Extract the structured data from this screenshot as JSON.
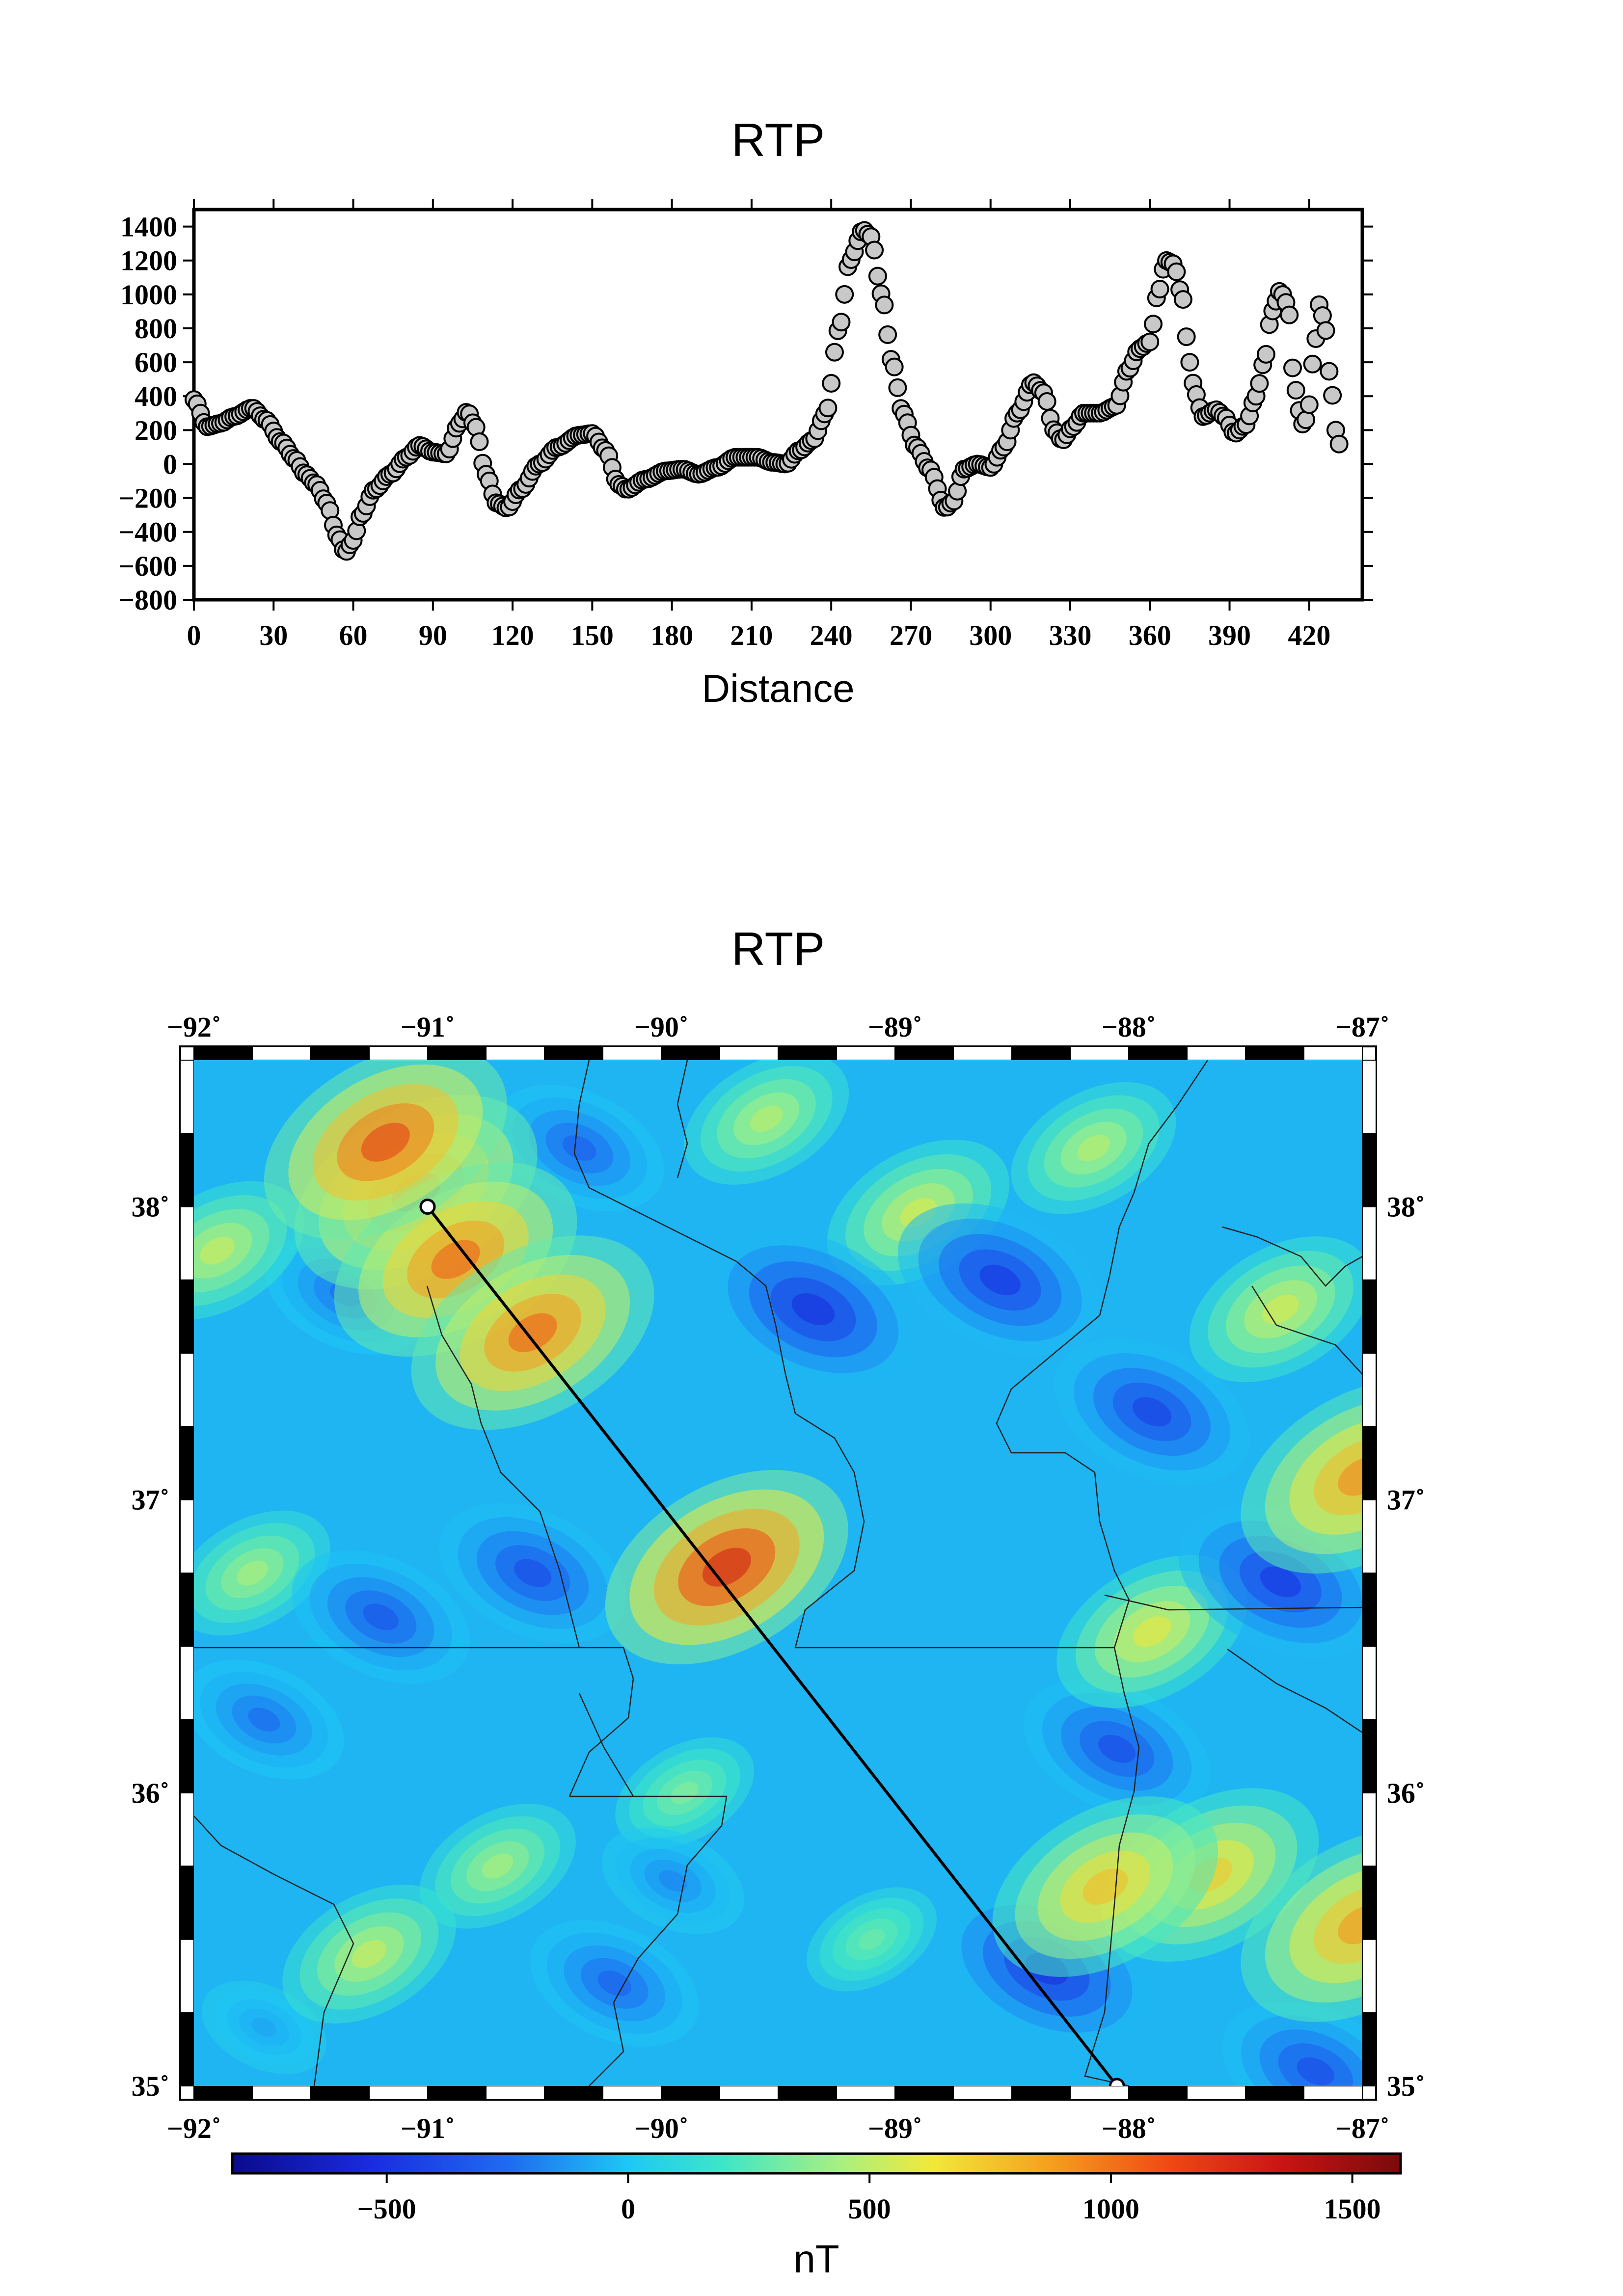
{
  "chart_data": [
    {
      "type": "scatter",
      "title": "RTP",
      "xlabel": "Distance",
      "ylabel": "",
      "xlim": [
        0,
        440
      ],
      "ylim": [
        -800,
        1500
      ],
      "x_ticks": [
        0,
        30,
        60,
        90,
        120,
        150,
        180,
        210,
        240,
        270,
        300,
        330,
        360,
        390,
        420
      ],
      "x_tick_labels": [
        "0",
        "30",
        "60",
        "90",
        "120",
        "150",
        "180",
        "210",
        "240",
        "270",
        "300",
        "330",
        "360",
        "390",
        "420"
      ],
      "y_ticks": [
        -800,
        -600,
        -400,
        -200,
        0,
        200,
        400,
        600,
        800,
        1000,
        1200,
        1400
      ],
      "y_tick_labels": [
        "−800",
        "−600",
        "−400",
        "−200",
        "0",
        "200",
        "400",
        "600",
        "800",
        "1000",
        "1200",
        "1400"
      ],
      "marker": {
        "shape": "circle",
        "fill": "#c8c8c8",
        "stroke": "#000000"
      },
      "profile_knots": [
        [
          0,
          380
        ],
        [
          5,
          220
        ],
        [
          10,
          240
        ],
        [
          15,
          280
        ],
        [
          22,
          330
        ],
        [
          27,
          260
        ],
        [
          33,
          130
        ],
        [
          38,
          30
        ],
        [
          42,
          -60
        ],
        [
          46,
          -120
        ],
        [
          50,
          -230
        ],
        [
          54,
          -420
        ],
        [
          57,
          -520
        ],
        [
          60,
          -450
        ],
        [
          63,
          -300
        ],
        [
          68,
          -150
        ],
        [
          74,
          -60
        ],
        [
          80,
          40
        ],
        [
          85,
          110
        ],
        [
          90,
          70
        ],
        [
          95,
          60
        ],
        [
          100,
          240
        ],
        [
          103,
          310
        ],
        [
          106,
          220
        ],
        [
          110,
          -60
        ],
        [
          114,
          -230
        ],
        [
          118,
          -260
        ],
        [
          123,
          -150
        ],
        [
          130,
          0
        ],
        [
          137,
          100
        ],
        [
          145,
          170
        ],
        [
          150,
          180
        ],
        [
          155,
          80
        ],
        [
          160,
          -120
        ],
        [
          163,
          -150
        ],
        [
          170,
          -90
        ],
        [
          178,
          -40
        ],
        [
          184,
          -30
        ],
        [
          190,
          -60
        ],
        [
          197,
          -20
        ],
        [
          204,
          40
        ],
        [
          212,
          40
        ],
        [
          218,
          10
        ],
        [
          223,
          0
        ],
        [
          228,
          80
        ],
        [
          233,
          140
        ],
        [
          238,
          300
        ],
        [
          243,
          800
        ],
        [
          247,
          1200
        ],
        [
          252,
          1380
        ],
        [
          255,
          1340
        ],
        [
          259,
          1000
        ],
        [
          263,
          600
        ],
        [
          267,
          300
        ],
        [
          272,
          100
        ],
        [
          277,
          -30
        ],
        [
          283,
          -260
        ],
        [
          286,
          -220
        ],
        [
          290,
          -30
        ],
        [
          295,
          0
        ],
        [
          300,
          -20
        ],
        [
          305,
          100
        ],
        [
          310,
          300
        ],
        [
          316,
          480
        ],
        [
          320,
          420
        ],
        [
          324,
          200
        ],
        [
          327,
          140
        ],
        [
          331,
          220
        ],
        [
          335,
          300
        ],
        [
          341,
          300
        ],
        [
          347,
          340
        ],
        [
          352,
          560
        ],
        [
          356,
          680
        ],
        [
          360,
          720
        ],
        [
          363,
          1000
        ],
        [
          366,
          1200
        ],
        [
          369,
          1180
        ],
        [
          372,
          1000
        ],
        [
          375,
          600
        ],
        [
          377,
          420
        ],
        [
          380,
          280
        ],
        [
          385,
          320
        ],
        [
          388,
          280
        ],
        [
          392,
          180
        ],
        [
          396,
          230
        ],
        [
          400,
          400
        ],
        [
          403,
          600
        ],
        [
          406,
          900
        ],
        [
          409,
          1020
        ],
        [
          412,
          940
        ],
        [
          414,
          550
        ],
        [
          416,
          320
        ],
        [
          418,
          220
        ],
        [
          420,
          350
        ],
        [
          422,
          700
        ],
        [
          424,
          950
        ],
        [
          426,
          800
        ],
        [
          428,
          500
        ],
        [
          430,
          200
        ],
        [
          432,
          80
        ]
      ]
    },
    {
      "type": "heatmap",
      "title": "RTP",
      "x_ticks": [
        -92,
        -91,
        -90,
        -89,
        -88,
        -87
      ],
      "x_tick_labels": [
        "−92˚",
        "−91˚",
        "−90˚",
        "−89˚",
        "−88˚",
        "−87˚"
      ],
      "y_ticks": [
        35,
        36,
        37,
        38
      ],
      "y_tick_labels": [
        "35˚",
        "36˚",
        "37˚",
        "38˚"
      ],
      "xlim": [
        -92,
        -87
      ],
      "ylim": [
        35,
        38.5
      ],
      "colorbar": {
        "label": "nT",
        "range": [
          -820,
          1600
        ],
        "ticks": [
          -500,
          0,
          500,
          1000,
          1500
        ],
        "tick_labels": [
          "−500",
          "0",
          "500",
          "1000",
          "1500"
        ]
      },
      "profile_line": {
        "start": [
          -91.0,
          38.0
        ],
        "end": [
          -88.05,
          35.0
        ]
      },
      "anomalies": [
        {
          "lon": -89.72,
          "lat": 36.77,
          "value": 1500
        },
        {
          "lon": -91.18,
          "lat": 38.22,
          "value": 1300
        },
        {
          "lon": -91.05,
          "lat": 38.05,
          "value": 1100
        },
        {
          "lon": -90.88,
          "lat": 37.82,
          "value": 1150
        },
        {
          "lon": -90.55,
          "lat": 37.57,
          "value": 1150
        },
        {
          "lon": -87.0,
          "lat": 37.08,
          "value": 1000
        },
        {
          "lon": -87.0,
          "lat": 35.55,
          "value": 950
        },
        {
          "lon": -87.65,
          "lat": 35.72,
          "value": 750
        },
        {
          "lon": -88.1,
          "lat": 35.68,
          "value": 800
        },
        {
          "lon": -88.9,
          "lat": 37.98,
          "value": 550
        },
        {
          "lon": -89.55,
          "lat": 38.3,
          "value": 450
        },
        {
          "lon": -88.15,
          "lat": 38.2,
          "value": 450
        },
        {
          "lon": -91.25,
          "lat": 35.45,
          "value": 500
        },
        {
          "lon": -91.75,
          "lat": 36.75,
          "value": 400
        },
        {
          "lon": -91.9,
          "lat": 37.85,
          "value": 500
        },
        {
          "lon": -87.9,
          "lat": 36.55,
          "value": 600
        },
        {
          "lon": -87.35,
          "lat": 37.65,
          "value": 550
        },
        {
          "lon": -89.9,
          "lat": 36.0,
          "value": 300
        },
        {
          "lon": -90.7,
          "lat": 35.75,
          "value": 400
        },
        {
          "lon": -89.1,
          "lat": 35.5,
          "value": 250
        },
        {
          "lon": -89.35,
          "lat": 37.65,
          "value": -700
        },
        {
          "lon": -88.55,
          "lat": 37.75,
          "value": -650
        },
        {
          "lon": -87.9,
          "lat": 37.3,
          "value": -600
        },
        {
          "lon": -87.35,
          "lat": 36.72,
          "value": -650
        },
        {
          "lon": -91.2,
          "lat": 36.6,
          "value": -500
        },
        {
          "lon": -90.55,
          "lat": 36.75,
          "value": -550
        },
        {
          "lon": -88.35,
          "lat": 35.4,
          "value": -700
        },
        {
          "lon": -88.05,
          "lat": 36.15,
          "value": -550
        },
        {
          "lon": -90.2,
          "lat": 35.35,
          "value": -450
        },
        {
          "lon": -89.95,
          "lat": 35.7,
          "value": -300
        },
        {
          "lon": -91.7,
          "lat": 36.25,
          "value": -400
        },
        {
          "lon": -91.35,
          "lat": 37.7,
          "value": -400
        },
        {
          "lon": -90.35,
          "lat": 38.2,
          "value": -450
        },
        {
          "lon": -91.7,
          "lat": 35.2,
          "value": -200
        },
        {
          "lon": -87.2,
          "lat": 35.05,
          "value": -550
        }
      ]
    }
  ]
}
